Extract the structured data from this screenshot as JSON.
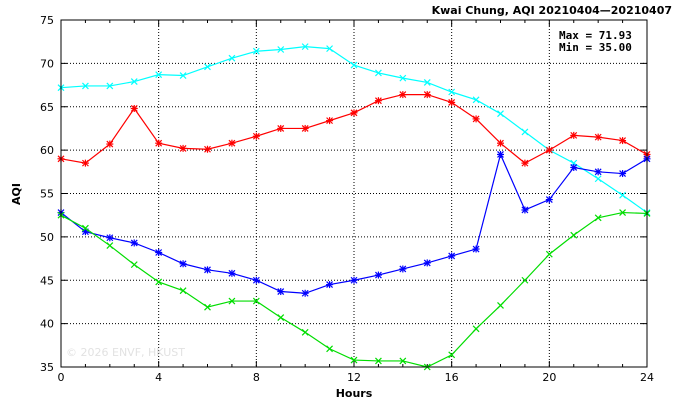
{
  "chart_data": {
    "type": "line",
    "title": "Kwai Chung, AQI 20210404—20210407",
    "xlabel": "Hours",
    "ylabel": "AQI",
    "xlim": [
      0,
      24
    ],
    "ylim": [
      35,
      75
    ],
    "xticks": [
      0,
      4,
      8,
      12,
      16,
      20,
      24
    ],
    "yticks": [
      35,
      40,
      45,
      50,
      55,
      60,
      65,
      70,
      75
    ],
    "grid": true,
    "stats": {
      "max": "Max = 71.93",
      "min": "Min = 35.00"
    },
    "watermark": "© 2026  ENVF, HKUST",
    "x": [
      0,
      1,
      2,
      3,
      4,
      5,
      6,
      7,
      8,
      9,
      10,
      11,
      12,
      13,
      14,
      15,
      16,
      17,
      18,
      19,
      20,
      21,
      22,
      23,
      24
    ],
    "series": [
      {
        "color": "#00ffff",
        "marker": "x",
        "values": [
          67.2,
          67.4,
          67.4,
          67.9,
          68.7,
          68.6,
          69.6,
          70.6,
          71.4,
          71.6,
          71.93,
          71.7,
          69.8,
          68.9,
          68.3,
          67.8,
          66.7,
          65.8,
          64.2,
          62.1,
          60.0,
          58.5,
          56.7,
          54.8,
          52.8
        ]
      },
      {
        "color": "#ff0000",
        "marker": "asterisk",
        "values": [
          59.0,
          58.5,
          60.7,
          64.8,
          60.8,
          60.2,
          60.1,
          60.8,
          61.6,
          62.5,
          62.5,
          63.4,
          64.3,
          65.7,
          66.4,
          66.4,
          65.5,
          63.6,
          60.8,
          58.5,
          60.0,
          61.7,
          61.5,
          61.1,
          59.5
        ]
      },
      {
        "color": "#0000ff",
        "marker": "asterisk",
        "values": [
          52.8,
          50.6,
          49.9,
          49.3,
          48.2,
          46.9,
          46.2,
          45.8,
          45.0,
          43.7,
          43.5,
          44.5,
          45.0,
          45.6,
          46.3,
          47.0,
          47.8,
          48.6,
          59.5,
          53.1,
          54.3,
          58.0,
          57.5,
          57.3,
          59.0
        ]
      },
      {
        "color": "#00dd00",
        "marker": "x",
        "values": [
          52.5,
          51.0,
          49.0,
          46.8,
          44.8,
          43.8,
          41.9,
          42.6,
          42.6,
          40.7,
          39.0,
          37.1,
          35.8,
          35.7,
          35.7,
          35.0,
          36.4,
          39.4,
          42.1,
          45.0,
          48.0,
          50.2,
          52.2,
          52.8,
          52.7
        ]
      }
    ]
  }
}
